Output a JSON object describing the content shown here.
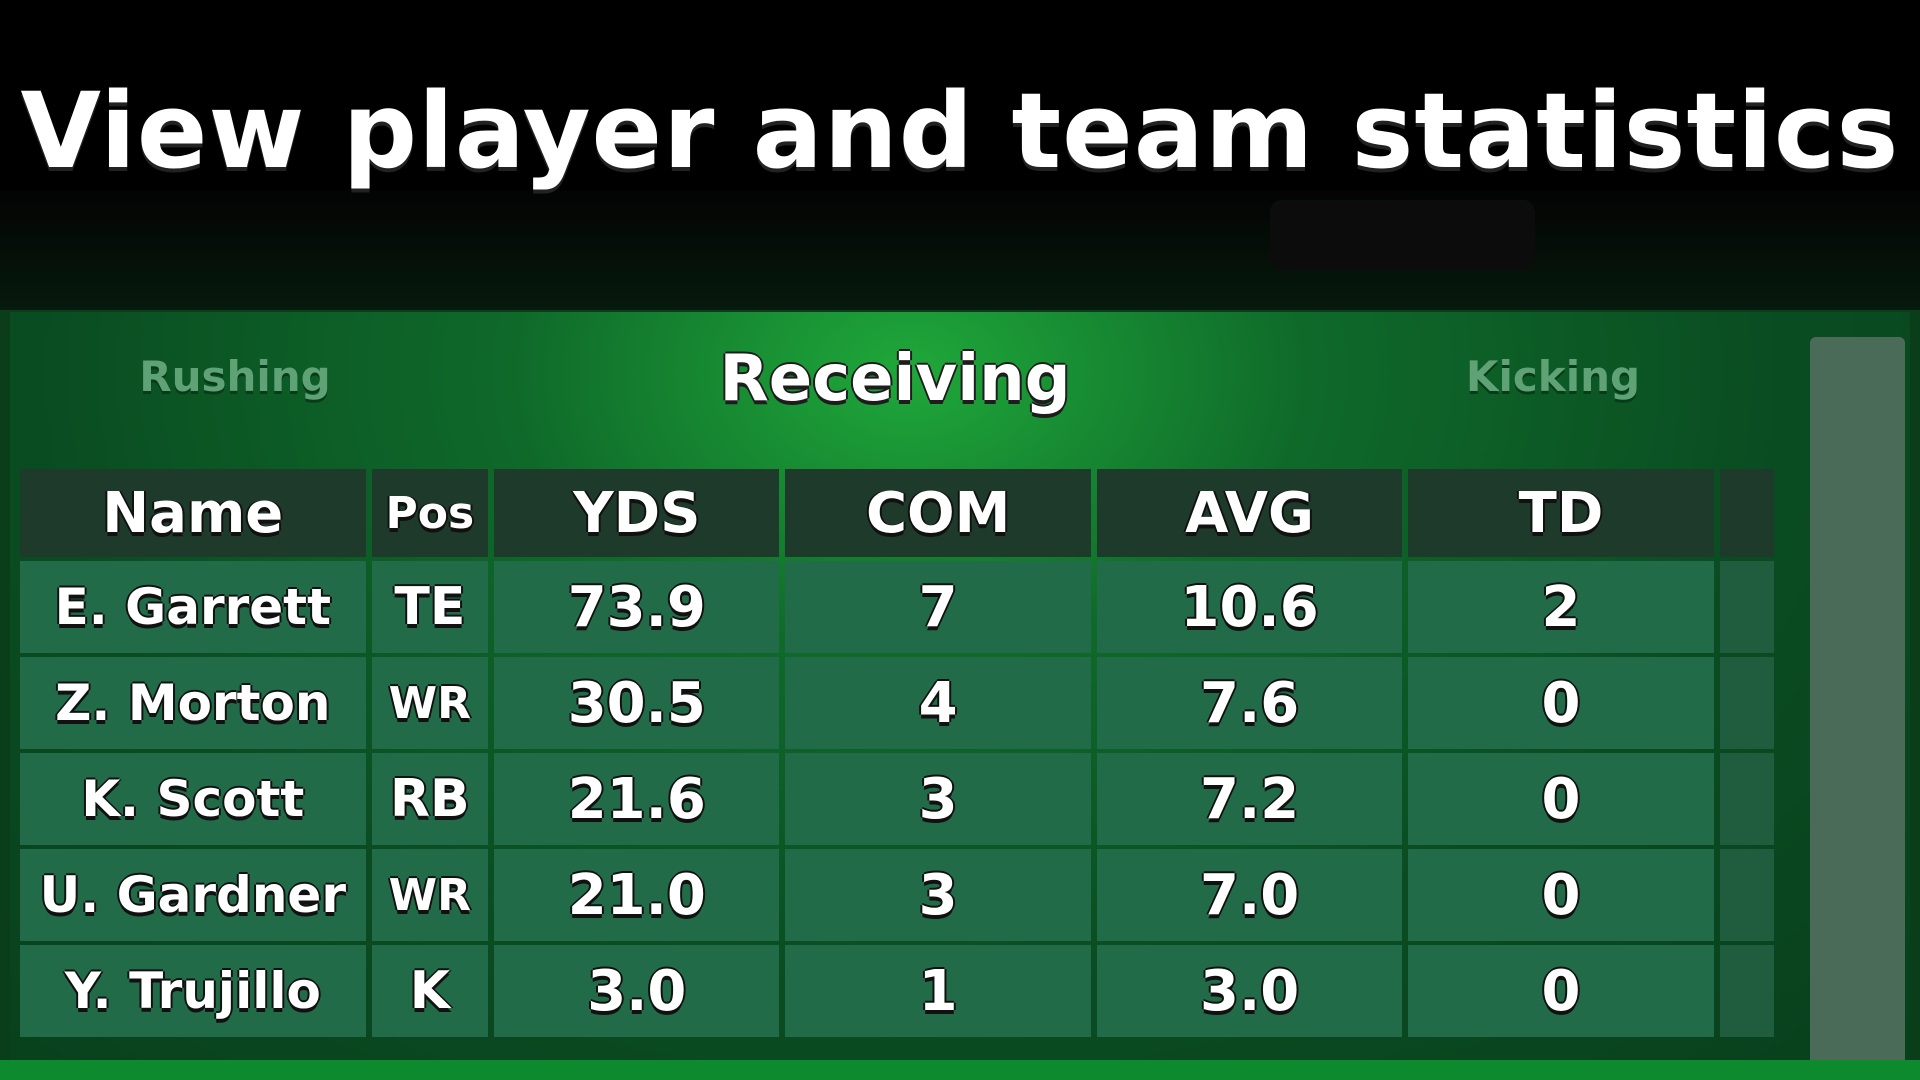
{
  "headline": "View player and team statistics",
  "tabs": {
    "rushing": "Rushing",
    "receiving": "Receiving",
    "kicking": "Kicking",
    "active": "Receiving"
  },
  "table": {
    "columns": [
      "Name",
      "Pos",
      "YDS",
      "COM",
      "AVG",
      "TD"
    ],
    "rows": [
      {
        "name": "E. Garrett",
        "pos": "TE",
        "yds": "73.9",
        "com": "7",
        "avg": "10.6",
        "td": "2"
      },
      {
        "name": "Z. Morton",
        "pos": "WR",
        "yds": "30.5",
        "com": "4",
        "avg": "7.6",
        "td": "0"
      },
      {
        "name": "K. Scott",
        "pos": "RB",
        "yds": "21.6",
        "com": "3",
        "avg": "7.2",
        "td": "0"
      },
      {
        "name": "U. Gardner",
        "pos": "WR",
        "yds": "21.0",
        "com": "3",
        "avg": "7.0",
        "td": "0"
      },
      {
        "name": "Y. Trujillo",
        "pos": "K",
        "yds": "3.0",
        "com": "1",
        "avg": "3.0",
        "td": "0"
      }
    ]
  },
  "colors": {
    "accent_green": "#1fa83a",
    "header_cell": "#1e3a2b",
    "row_cell": "#226b48"
  }
}
